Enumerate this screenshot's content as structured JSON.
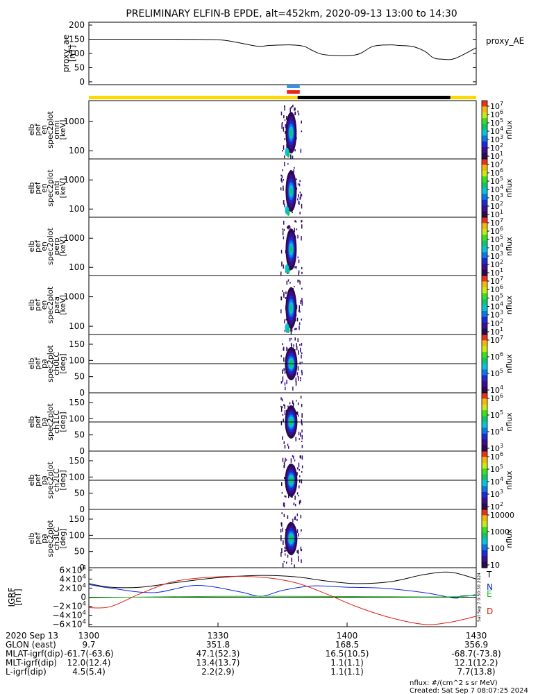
{
  "title": "PRELIMINARY ELFIN-B EPDE, alt=452km, 2020-09-13 13:00 to 14:30",
  "chart_data": [
    {
      "type": "line",
      "ylabel": [
        "proxy_ae",
        "[nT]"
      ],
      "legend": "proxy_AE",
      "yticks": [
        "200",
        "150",
        "100",
        "50",
        "0"
      ],
      "ylim": [
        -10,
        210
      ],
      "x_minutes": [
        0,
        20,
        30,
        34,
        38,
        40,
        42,
        47,
        50,
        52,
        55,
        62,
        66,
        70,
        72,
        75,
        78,
        80,
        82,
        85,
        90
      ],
      "values": [
        150,
        150,
        148,
        140,
        128,
        125,
        128,
        130,
        125,
        110,
        95,
        95,
        125,
        130,
        128,
        125,
        108,
        85,
        80,
        82,
        120
      ]
    },
    {
      "type": "bar",
      "name": "status bars",
      "items": [
        {
          "color": "#ffd800",
          "from": 0,
          "to": 48.5
        },
        {
          "color": "#000000",
          "from": 48.5,
          "to": 84.0
        },
        {
          "color": "#ffd800",
          "from": 84.0,
          "to": 90
        },
        {
          "color": "#3a8fe8",
          "from": 46.0,
          "to": 49.0
        },
        {
          "color": "#e8231c",
          "from": 46.0,
          "to": 49.0
        }
      ]
    },
    {
      "type": "heatmap",
      "ylabel": [
        "elb",
        "pef",
        "en",
        "spec2plot",
        "omni",
        "[keV]"
      ],
      "yticks": [
        "1000",
        "100"
      ],
      "colorbar": {
        "label": "nflux",
        "ticks": [
          "10^7",
          "10^6",
          "10^5",
          "10^4",
          "10^3",
          "10^2",
          "10^1"
        ]
      },
      "active_minutes": [
        44.5,
        49.5
      ]
    },
    {
      "type": "heatmap",
      "ylabel": [
        "elb",
        "pef",
        "en",
        "spec2plot",
        "anti",
        "[keV]"
      ],
      "yticks": [
        "1000",
        "100"
      ],
      "colorbar": {
        "label": "nflux",
        "ticks": [
          "10^7",
          "10^6",
          "10^5",
          "10^4",
          "10^3",
          "10^2",
          "10^1"
        ]
      },
      "active_minutes": [
        44.5,
        49.5
      ]
    },
    {
      "type": "heatmap",
      "ylabel": [
        "elb",
        "pef",
        "en",
        "spec2plot",
        "perp",
        "[keV]"
      ],
      "yticks": [
        "1000",
        "100"
      ],
      "colorbar": {
        "label": "nflux",
        "ticks": [
          "10^7",
          "10^6",
          "10^5",
          "10^4",
          "10^3",
          "10^2",
          "10^1"
        ]
      },
      "active_minutes": [
        44.5,
        49.5
      ]
    },
    {
      "type": "heatmap",
      "ylabel": [
        "elb",
        "pef",
        "en",
        "spec2plot",
        "para",
        "[keV]"
      ],
      "yticks": [
        "1000",
        "100"
      ],
      "colorbar": {
        "label": "nflux",
        "ticks": [
          "10^7",
          "10^6",
          "10^5",
          "10^4",
          "10^3",
          "10^2",
          "10^1"
        ]
      },
      "active_minutes": [
        44.5,
        49.5
      ]
    },
    {
      "type": "heatmap",
      "ylabel": [
        "elb",
        "pef",
        "pa",
        "spec2plot",
        "ch0LC",
        "[deg]"
      ],
      "yticks": [
        "150",
        "100",
        "50",
        "0"
      ],
      "colorbar": {
        "label": "nflux",
        "ticks": [
          "10^7",
          "10^6",
          "10^5",
          "10^4"
        ]
      },
      "active_minutes": [
        44.5,
        49.5
      ]
    },
    {
      "type": "heatmap",
      "ylabel": [
        "elb",
        "pef",
        "pa",
        "spec2plot",
        "ch1LC",
        "[deg]"
      ],
      "yticks": [
        "150",
        "100",
        "50",
        "0"
      ],
      "colorbar": {
        "label": "nflux",
        "ticks": [
          "10^6",
          "10^5",
          "10^4",
          "10^3"
        ]
      },
      "active_minutes": [
        44.5,
        49.5
      ]
    },
    {
      "type": "heatmap",
      "ylabel": [
        "elb",
        "pef",
        "pa",
        "spec2plot",
        "ch2LC",
        "[deg]"
      ],
      "yticks": [
        "150",
        "100",
        "50",
        "0"
      ],
      "colorbar": {
        "label": "nflux",
        "ticks": [
          "10^6",
          "10^5",
          "10^4",
          "10^3",
          "10^2"
        ]
      },
      "active_minutes": [
        44.5,
        49.5
      ]
    },
    {
      "type": "heatmap",
      "ylabel": [
        "elb",
        "pef",
        "pa",
        "spec2plot",
        "ch3LC",
        "[deg]"
      ],
      "yticks": [
        "150",
        "100",
        "50",
        "0"
      ],
      "colorbar": {
        "label": "nflux",
        "ticks": [
          "10000",
          "1000",
          "100",
          "10"
        ]
      },
      "active_minutes": [
        44.5,
        49.5
      ]
    },
    {
      "type": "line",
      "ylabel": [
        "IGRF",
        "[nT]"
      ],
      "yticks": [
        "6×10^4",
        "4×10^4",
        "2×10^4",
        "0",
        "−2×10^4",
        "−4×10^4",
        "−6×10^4"
      ],
      "ylim": [
        -65000,
        65000
      ],
      "side_note": "Sat Sep 7 0:50:30 2024",
      "series": [
        {
          "name": "T",
          "color": "#000000",
          "x_minutes": [
            0,
            5,
            12,
            20,
            30,
            40,
            48,
            55,
            62,
            70,
            78,
            84,
            90
          ],
          "values": [
            30000,
            22000,
            22000,
            32000,
            43000,
            48000,
            45000,
            36000,
            30000,
            34000,
            50000,
            55000,
            40000
          ]
        },
        {
          "name": "N",
          "color": "#0a22e0",
          "x_minutes": [
            0,
            5,
            15,
            25,
            35,
            40,
            45,
            52,
            60,
            68,
            78,
            85,
            86.5,
            90
          ],
          "values": [
            28000,
            20000,
            10000,
            26000,
            12000,
            2000,
            15000,
            25000,
            22000,
            20000,
            10000,
            -2000,
            2500,
            3500
          ]
        },
        {
          "name": "E",
          "color": "#13c21a",
          "x_minutes": [
            0,
            30,
            60,
            85,
            90
          ],
          "values": [
            -1000,
            2000,
            1500,
            1000,
            7000
          ]
        },
        {
          "name": "D",
          "color": "#e01a10",
          "x_minutes": [
            0,
            5,
            12,
            20,
            30,
            40,
            48,
            55,
            62,
            70,
            78,
            84,
            90
          ],
          "values": [
            -23000,
            -21000,
            8000,
            35000,
            45000,
            44000,
            32000,
            8000,
            -20000,
            -45000,
            -60000,
            -55000,
            -42000
          ]
        }
      ]
    }
  ],
  "xaxis": {
    "tick_labels": [
      "1300",
      "1330",
      "1400",
      "1430"
    ],
    "rows": [
      {
        "label": "2020 Sep 13",
        "values": [
          "1300",
          "1330",
          "1400",
          "1430"
        ]
      },
      {
        "label": "GLON (east)",
        "values": [
          "9.7",
          "351.8",
          "168.5",
          "356.9"
        ]
      },
      {
        "label": "MLAT-igrf(dip)",
        "values": [
          "-61.7(-63.6)",
          "47.1(52.3)",
          "16.5(10.5)",
          "-68.7(-73.8)"
        ]
      },
      {
        "label": "MLT-igrf(dip)",
        "values": [
          "12.0(12.4)",
          "13.4(13.7)",
          "1.1(1.1)",
          "12.1(12.2)"
        ]
      },
      {
        "label": "L-igrf(dip)",
        "values": [
          "4.5(5.4)",
          "2.2(2.9)",
          "1.1(1.1)",
          "7.7(13.8)"
        ]
      }
    ]
  },
  "footer": {
    "units": "nflux: #/(cm^2 s sr MeV)",
    "created": "Created: Sat Sep  7 08:07:25 2024"
  }
}
